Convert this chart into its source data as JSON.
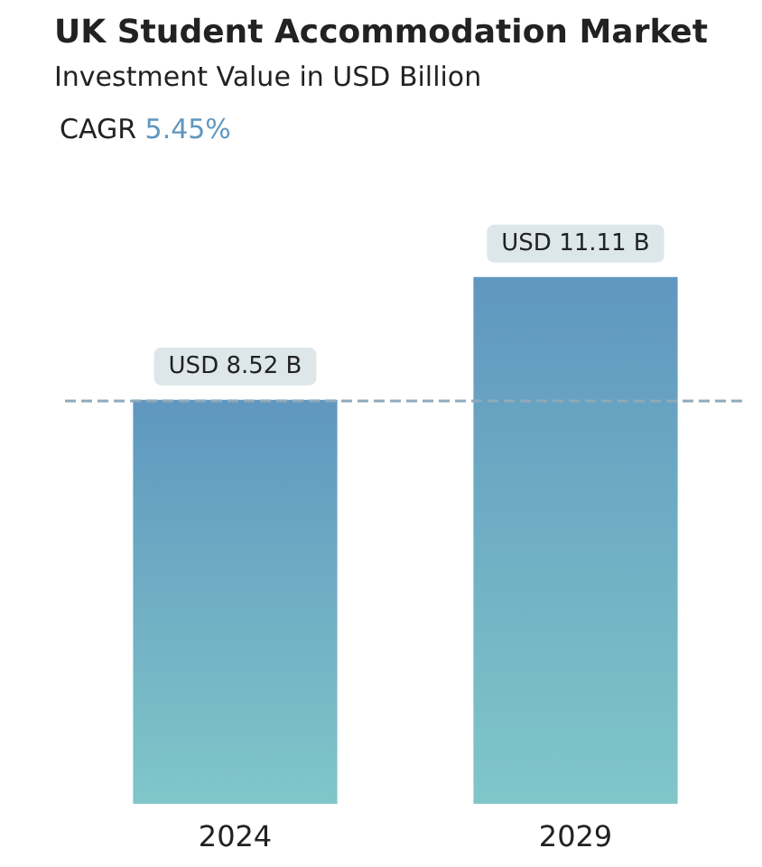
{
  "chart_data": {
    "type": "bar",
    "title": "UK Student Accommodation Market",
    "subtitle": "Investment Value in USD Billion",
    "annotations": [
      "CAGR 5.45%"
    ],
    "categories": [
      "2024",
      "2029"
    ],
    "values": [
      8.52,
      11.11
    ],
    "color": "#5f97bf",
    "value_labels": [
      "USD 8.52 B",
      "USD 11.11 B"
    ],
    "ref_lines": [
      {
        "axis": "y",
        "value": 8.52,
        "color": "#8faab9",
        "line_style": "dashed"
      }
    ]
  }
}
